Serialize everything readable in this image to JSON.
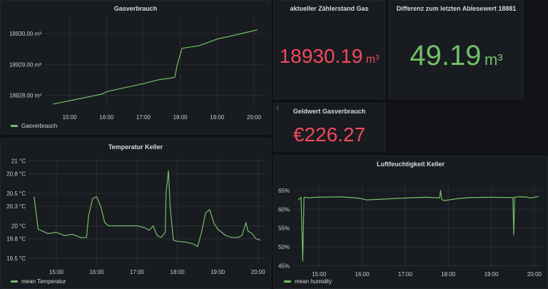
{
  "colors": {
    "series": "#73bf69",
    "value_red": "#f2495c",
    "value_green": "#73bf69",
    "grid": "#2a2d33",
    "axis_text": "#c7d0d9"
  },
  "panels": {
    "gas": {
      "title": "Gasverbrauch"
    },
    "zaehler": {
      "title": "aktueller Zählerstand Gas",
      "value": "18930.19",
      "unit": "m³"
    },
    "differenz": {
      "title": "Differenz zum letzten Ablesewert 18881",
      "value": "49.19",
      "unit": "m³"
    },
    "geldwert": {
      "title": "Geldwert Gasverbrauch",
      "value": "€226.27",
      "info_icon": "i"
    },
    "temp": {
      "title": "Temperatur Keller"
    },
    "humidity": {
      "title": "Luftfeuchtigkeit Keller"
    }
  },
  "chart_data": [
    {
      "id": "gas",
      "type": "line",
      "title": "Gasverbrauch",
      "x_range": [
        14.33,
        20.33
      ],
      "y_range": [
        18927.6,
        18930.55
      ],
      "yticks": [
        {
          "v": 18928,
          "label": "18928.00 m³"
        },
        {
          "v": 18929,
          "label": "18929.00 m³"
        },
        {
          "v": 18930,
          "label": "18930.00 m³"
        }
      ],
      "xticks": [
        {
          "v": 15,
          "label": "15:00"
        },
        {
          "v": 16,
          "label": "16:00"
        },
        {
          "v": 17,
          "label": "17:00"
        },
        {
          "v": 18,
          "label": "18:00"
        },
        {
          "v": 19,
          "label": "19:00"
        },
        {
          "v": 20,
          "label": "20:00"
        }
      ],
      "series": [
        {
          "name": "Gasverbrauch",
          "x": [
            14.55,
            15.3,
            15.9,
            16.0,
            16.5,
            17.0,
            17.4,
            17.85,
            17.92,
            18.05,
            18.5,
            18.85,
            19.0,
            19.5,
            20.1
          ],
          "y": [
            18927.72,
            18927.9,
            18928.05,
            18928.12,
            18928.25,
            18928.38,
            18928.5,
            18928.58,
            18929.0,
            18929.52,
            18929.6,
            18929.75,
            18929.82,
            18929.95,
            18930.12
          ]
        }
      ],
      "legend": "Gasverbrauch"
    },
    {
      "id": "temp",
      "type": "line",
      "title": "Temperatur Keller",
      "x_range": [
        14.33,
        20.2
      ],
      "y_range": [
        19.4,
        21.05
      ],
      "yticks": [
        {
          "v": 19.5,
          "label": "19.5 °C"
        },
        {
          "v": 19.8,
          "label": "19.8 °C"
        },
        {
          "v": 20,
          "label": "20 °C"
        },
        {
          "v": 20.3,
          "label": "20.3 °C"
        },
        {
          "v": 20.5,
          "label": "20.5 °C"
        },
        {
          "v": 20.8,
          "label": "20.8 °C"
        },
        {
          "v": 21,
          "label": "21 °C"
        }
      ],
      "xticks": [
        {
          "v": 15,
          "label": "15:00"
        },
        {
          "v": 16,
          "label": "16:00"
        },
        {
          "v": 17,
          "label": "17:00"
        },
        {
          "v": 18,
          "label": "18:00"
        },
        {
          "v": 19,
          "label": "19:00"
        },
        {
          "v": 20,
          "label": "20:00"
        }
      ],
      "series": [
        {
          "name": "mean Temperatur",
          "x": [
            14.45,
            14.55,
            14.65,
            14.8,
            15.0,
            15.2,
            15.4,
            15.6,
            15.75,
            15.8,
            15.9,
            16.0,
            16.1,
            16.2,
            16.3,
            16.5,
            16.8,
            17.0,
            17.2,
            17.3,
            17.4,
            17.5,
            17.6,
            17.7,
            17.72,
            17.78,
            17.82,
            17.9,
            18.0,
            18.2,
            18.4,
            18.5,
            18.6,
            18.7,
            18.8,
            18.9,
            19.0,
            19.2,
            19.35,
            19.5,
            19.6,
            19.7,
            19.75,
            19.85,
            19.95,
            20.05
          ],
          "y": [
            20.45,
            19.95,
            19.92,
            19.88,
            19.9,
            19.85,
            19.87,
            19.82,
            19.82,
            20.15,
            20.42,
            20.45,
            20.3,
            20.05,
            20.0,
            20.0,
            20.0,
            20.0,
            19.97,
            19.93,
            20.0,
            19.85,
            19.82,
            19.9,
            20.5,
            20.85,
            20.3,
            19.78,
            19.76,
            19.75,
            19.72,
            19.68,
            19.9,
            20.2,
            20.25,
            20.05,
            19.95,
            19.85,
            19.82,
            19.82,
            19.85,
            20.05,
            19.92,
            19.88,
            19.8,
            19.78
          ]
        }
      ],
      "legend": "mean Temperatur"
    },
    {
      "id": "hum",
      "type": "line",
      "title": "Luftfeuchtigkeit Keller",
      "x_range": [
        14.4,
        20.2
      ],
      "y_range": [
        44.5,
        66.5
      ],
      "yticks": [
        {
          "v": 45,
          "label": "45%"
        },
        {
          "v": 50,
          "label": "50%"
        },
        {
          "v": 55,
          "label": "55%"
        },
        {
          "v": 60,
          "label": "60%"
        },
        {
          "v": 65,
          "label": "65%"
        }
      ],
      "xticks": [
        {
          "v": 15,
          "label": "15:00"
        },
        {
          "v": 16,
          "label": "16:00"
        },
        {
          "v": 17,
          "label": "17:00"
        },
        {
          "v": 18,
          "label": "18:00"
        },
        {
          "v": 19,
          "label": "19:00"
        },
        {
          "v": 20,
          "label": "20:00"
        }
      ],
      "series": [
        {
          "name": "mean humidity",
          "x": [
            14.52,
            14.58,
            14.62,
            14.65,
            14.7,
            14.75,
            14.9,
            15.0,
            15.5,
            15.9,
            16.1,
            16.5,
            17.0,
            17.5,
            17.8,
            17.82,
            17.85,
            17.9,
            18.2,
            18.5,
            19.0,
            19.5,
            19.52,
            19.54,
            19.56,
            19.6,
            19.8,
            19.9,
            20.0,
            20.1
          ],
          "y": [
            62.5,
            63.2,
            46.2,
            63.1,
            63.2,
            63.0,
            63.2,
            63.2,
            63.3,
            63.0,
            62.5,
            62.7,
            63.0,
            63.2,
            63.0,
            65.0,
            62.6,
            62.3,
            62.8,
            63.1,
            63.2,
            63.1,
            53.2,
            63.3,
            63.2,
            63.3,
            63.3,
            63.0,
            63.2,
            63.4
          ]
        }
      ],
      "legend": "mean humidity"
    }
  ]
}
